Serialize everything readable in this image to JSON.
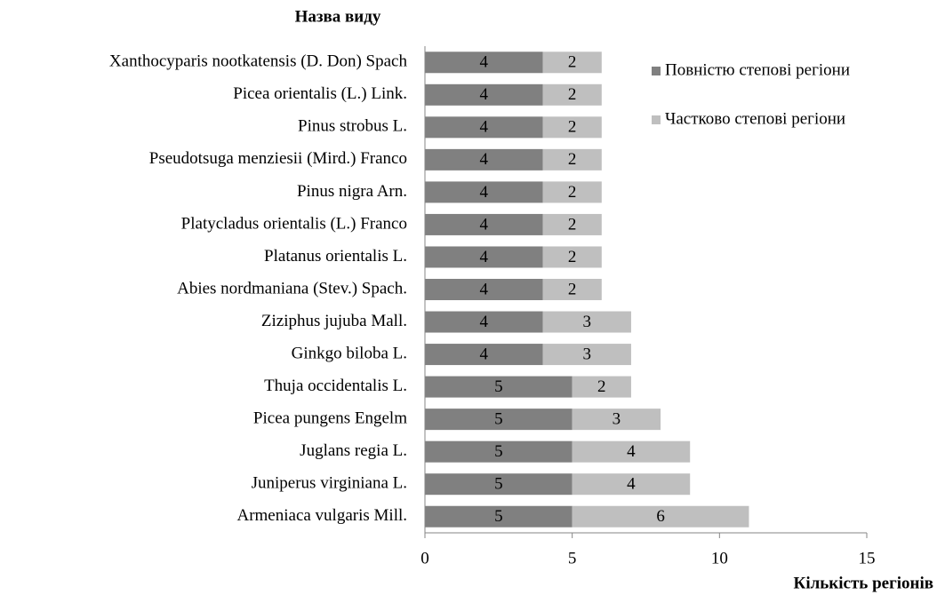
{
  "chart_data": {
    "type": "stacked_barh",
    "y_axis_label": "Назва виду",
    "x_axis_label": "Кількість регіонів",
    "categories": [
      "Xanthocyparis nootkatensis (D. Don) Spach",
      "Picea orientalis (L.) Link.",
      "Pinus strobus L.",
      "Pseudotsuga menziesii (Mird.) Franco",
      "Pinus nigra Arn.",
      "Platycladus orientalis (L.) Franco",
      "Platanus orientalis L.",
      "Abies nordmaniana (Stev.) Spach.",
      "Ziziphus jujuba Mall.",
      "Ginkgo biloba L.",
      "Thuja occidentalis L.",
      "Picea pungens Engelm",
      "Juglans regia L.",
      "Juniperus virginiana L.",
      "Armeniaca vulgaris Mill."
    ],
    "series": [
      {
        "name": "Повністю степові регіони",
        "color": "#808080",
        "values": [
          4,
          4,
          4,
          4,
          4,
          4,
          4,
          4,
          4,
          4,
          5,
          5,
          5,
          5,
          5
        ]
      },
      {
        "name": "Частково степові регіони",
        "color": "#bfbfbf",
        "values": [
          2,
          2,
          2,
          2,
          2,
          2,
          2,
          2,
          3,
          3,
          2,
          3,
          4,
          4,
          6
        ]
      }
    ],
    "xlim": [
      0,
      15
    ],
    "xticks": [
      0,
      5,
      10,
      15
    ],
    "legend": "right"
  }
}
